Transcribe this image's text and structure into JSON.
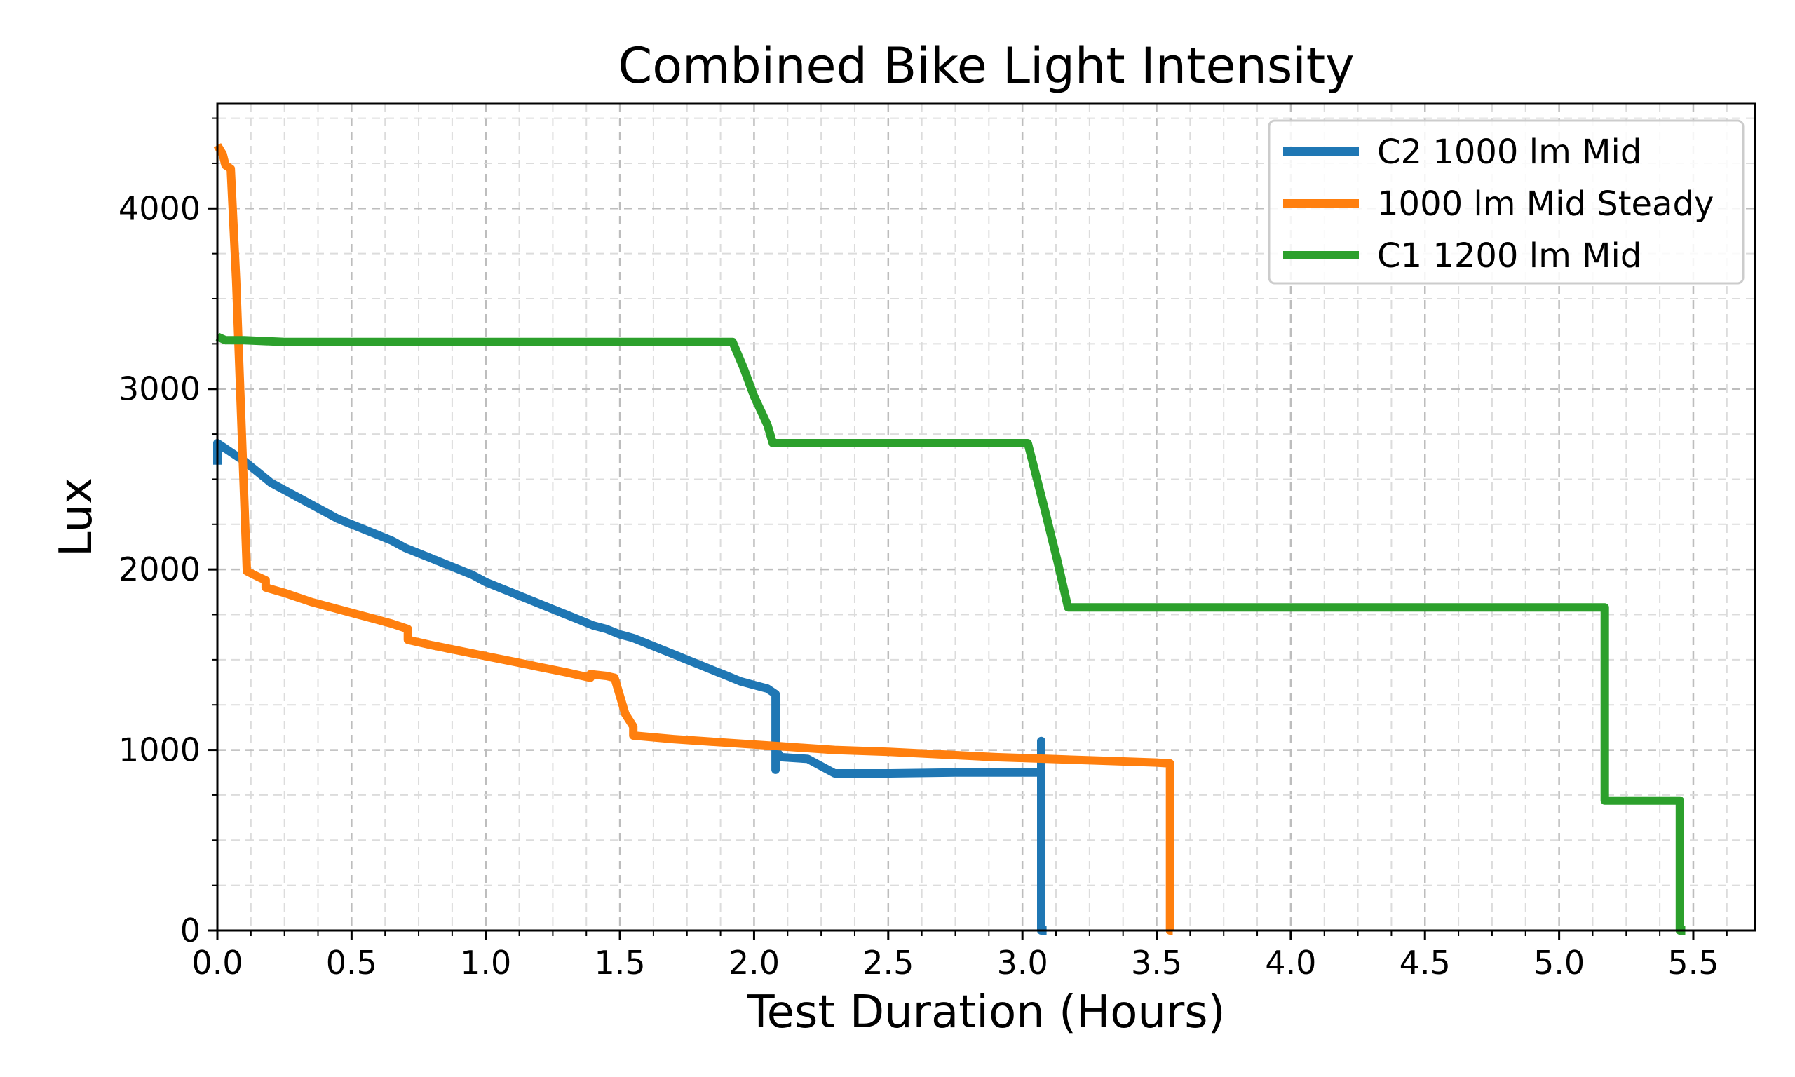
{
  "chart_data": {
    "type": "line",
    "title": "Combined Bike Light Intensity",
    "xlabel": "Test Duration (Hours)",
    "ylabel": "Lux",
    "xlim": [
      0,
      5.73
    ],
    "ylim": [
      0,
      4580
    ],
    "xticks": [
      0.0,
      0.5,
      1.0,
      1.5,
      2.0,
      2.5,
      3.0,
      3.5,
      4.0,
      4.5,
      5.0,
      5.5
    ],
    "xtick_labels": [
      "0.0",
      "0.5",
      "1.0",
      "1.5",
      "2.0",
      "2.5",
      "3.0",
      "3.5",
      "4.0",
      "4.5",
      "5.0",
      "5.5"
    ],
    "yticks": [
      0,
      1000,
      2000,
      3000,
      4000
    ],
    "ytick_labels": [
      "0",
      "1000",
      "2000",
      "3000",
      "4000"
    ],
    "grid": true,
    "legend_position": "upper-right",
    "series": [
      {
        "name": "C2 1000 lm Mid",
        "color": "#1f77b4",
        "points": [
          [
            0.0,
            2580
          ],
          [
            0.0,
            2700
          ],
          [
            0.05,
            2650
          ],
          [
            0.1,
            2600
          ],
          [
            0.15,
            2540
          ],
          [
            0.2,
            2480
          ],
          [
            0.25,
            2440
          ],
          [
            0.3,
            2400
          ],
          [
            0.35,
            2360
          ],
          [
            0.4,
            2320
          ],
          [
            0.45,
            2280
          ],
          [
            0.5,
            2250
          ],
          [
            0.55,
            2220
          ],
          [
            0.6,
            2190
          ],
          [
            0.65,
            2160
          ],
          [
            0.7,
            2120
          ],
          [
            0.75,
            2090
          ],
          [
            0.8,
            2060
          ],
          [
            0.85,
            2030
          ],
          [
            0.9,
            2000
          ],
          [
            0.95,
            1970
          ],
          [
            1.0,
            1930
          ],
          [
            1.05,
            1900
          ],
          [
            1.1,
            1870
          ],
          [
            1.15,
            1840
          ],
          [
            1.2,
            1810
          ],
          [
            1.25,
            1780
          ],
          [
            1.3,
            1750
          ],
          [
            1.35,
            1720
          ],
          [
            1.4,
            1690
          ],
          [
            1.45,
            1670
          ],
          [
            1.5,
            1640
          ],
          [
            1.55,
            1620
          ],
          [
            1.6,
            1590
          ],
          [
            1.65,
            1560
          ],
          [
            1.7,
            1530
          ],
          [
            1.75,
            1500
          ],
          [
            1.8,
            1470
          ],
          [
            1.85,
            1440
          ],
          [
            1.9,
            1410
          ],
          [
            1.95,
            1380
          ],
          [
            2.0,
            1360
          ],
          [
            2.05,
            1340
          ],
          [
            2.08,
            1310
          ],
          [
            2.08,
            890
          ],
          [
            2.08,
            1000
          ],
          [
            2.1,
            960
          ],
          [
            2.2,
            950
          ],
          [
            2.25,
            910
          ],
          [
            2.3,
            870
          ],
          [
            2.5,
            870
          ],
          [
            2.75,
            875
          ],
          [
            3.0,
            875
          ],
          [
            3.07,
            875
          ],
          [
            3.07,
            1050
          ],
          [
            3.07,
            0
          ],
          [
            3.09,
            0
          ]
        ]
      },
      {
        "name": "1000 lm Mid Steady",
        "color": "#ff7f0e",
        "points": [
          [
            0.0,
            4350
          ],
          [
            0.02,
            4300
          ],
          [
            0.03,
            4240
          ],
          [
            0.05,
            4220
          ],
          [
            0.07,
            3600
          ],
          [
            0.09,
            2800
          ],
          [
            0.11,
            1990
          ],
          [
            0.15,
            1960
          ],
          [
            0.18,
            1940
          ],
          [
            0.18,
            1900
          ],
          [
            0.25,
            1870
          ],
          [
            0.35,
            1820
          ],
          [
            0.45,
            1780
          ],
          [
            0.55,
            1740
          ],
          [
            0.65,
            1700
          ],
          [
            0.71,
            1670
          ],
          [
            0.71,
            1610
          ],
          [
            0.8,
            1580
          ],
          [
            0.9,
            1550
          ],
          [
            1.0,
            1520
          ],
          [
            1.1,
            1490
          ],
          [
            1.2,
            1460
          ],
          [
            1.3,
            1430
          ],
          [
            1.39,
            1400
          ],
          [
            1.39,
            1420
          ],
          [
            1.45,
            1410
          ],
          [
            1.48,
            1400
          ],
          [
            1.5,
            1300
          ],
          [
            1.52,
            1200
          ],
          [
            1.55,
            1130
          ],
          [
            1.55,
            1080
          ],
          [
            1.7,
            1060
          ],
          [
            1.9,
            1040
          ],
          [
            2.1,
            1020
          ],
          [
            2.3,
            1000
          ],
          [
            2.5,
            990
          ],
          [
            2.7,
            975
          ],
          [
            2.9,
            960
          ],
          [
            3.1,
            950
          ],
          [
            3.3,
            940
          ],
          [
            3.5,
            930
          ],
          [
            3.55,
            925
          ],
          [
            3.55,
            0
          ],
          [
            3.56,
            0
          ]
        ]
      },
      {
        "name": "C1 1200 lm Mid",
        "color": "#2ca02c",
        "points": [
          [
            0.0,
            3290
          ],
          [
            0.03,
            3270
          ],
          [
            0.1,
            3270
          ],
          [
            0.25,
            3260
          ],
          [
            0.5,
            3260
          ],
          [
            1.0,
            3260
          ],
          [
            1.5,
            3260
          ],
          [
            1.92,
            3260
          ],
          [
            1.96,
            3120
          ],
          [
            2.0,
            2960
          ],
          [
            2.05,
            2800
          ],
          [
            2.07,
            2700
          ],
          [
            2.2,
            2700
          ],
          [
            2.5,
            2700
          ],
          [
            2.8,
            2700
          ],
          [
            3.02,
            2700
          ],
          [
            3.08,
            2350
          ],
          [
            3.13,
            2050
          ],
          [
            3.17,
            1790
          ],
          [
            3.5,
            1790
          ],
          [
            4.0,
            1790
          ],
          [
            4.5,
            1790
          ],
          [
            5.0,
            1790
          ],
          [
            5.17,
            1790
          ],
          [
            5.17,
            720
          ],
          [
            5.3,
            720
          ],
          [
            5.45,
            720
          ],
          [
            5.45,
            0
          ],
          [
            5.47,
            0
          ]
        ]
      }
    ]
  }
}
